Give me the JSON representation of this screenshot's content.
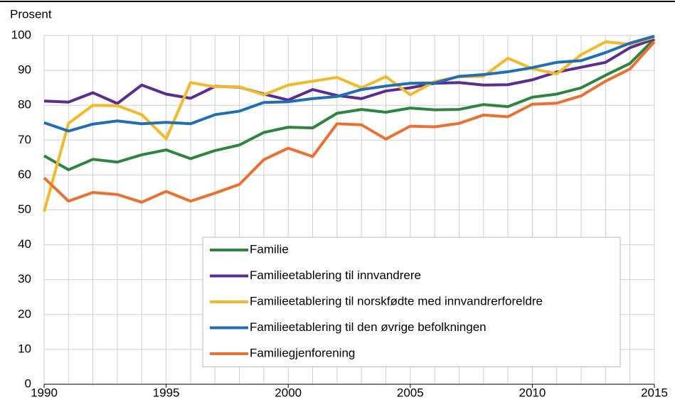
{
  "chart_data": {
    "type": "line",
    "y_axis_label": "Prosent",
    "x": [
      1990,
      1991,
      1992,
      1993,
      1994,
      1995,
      1996,
      1997,
      1998,
      1999,
      2000,
      2001,
      2002,
      2003,
      2004,
      2005,
      2006,
      2007,
      2008,
      2009,
      2010,
      2011,
      2012,
      2013,
      2014,
      2015
    ],
    "xlim": [
      1990,
      2015
    ],
    "xticks": [
      1990,
      1995,
      2000,
      2005,
      2010,
      2015
    ],
    "ylim": [
      0,
      100
    ],
    "yticks": [
      0,
      10,
      20,
      30,
      40,
      50,
      60,
      70,
      80,
      90,
      100
    ],
    "grid": true,
    "legend": "lower right",
    "series": [
      {
        "name": "Familie",
        "color": "#2e8540",
        "values": [
          65.5,
          61.5,
          64.5,
          63.7,
          65.8,
          67.2,
          64.7,
          67,
          68.6,
          72.2,
          73.7,
          73.5,
          77.7,
          78.8,
          78,
          79.2,
          78.7,
          78.8,
          80.2,
          79.6,
          82.3,
          83.2,
          85,
          88.6,
          92,
          99
        ]
      },
      {
        "name": "Familieetablering til innvandrere",
        "color": "#5c2d91",
        "values": [
          81.2,
          80.9,
          83.6,
          80.5,
          85.8,
          83.2,
          82,
          85.4,
          85.2,
          83.2,
          81.5,
          84.5,
          82.8,
          81.9,
          84.1,
          85,
          86.3,
          86.5,
          85.8,
          85.9,
          87.3,
          89.5,
          90.9,
          92.3,
          96.5,
          99
        ]
      },
      {
        "name": "Familieetablering til norskfødte med innvandrerforeldre",
        "color": "#f2b92a",
        "values": [
          49.5,
          74.8,
          80,
          79.9,
          77.3,
          70.4,
          86.5,
          85.3,
          85.3,
          83,
          85.8,
          86.9,
          88,
          85,
          88.2,
          83,
          86.8,
          88.2,
          88.3,
          93.5,
          90.5,
          89,
          94.5,
          98.2,
          97.5,
          99.5
        ]
      },
      {
        "name": "Familieetablering til den øvrige befolkningen",
        "color": "#1f6fb5",
        "values": [
          75,
          72.6,
          74.6,
          75.5,
          74.7,
          75.1,
          74.7,
          77.3,
          78.3,
          80.8,
          81,
          81.9,
          82.5,
          84.5,
          85.5,
          86.3,
          86.4,
          88.3,
          88.8,
          89.6,
          90.8,
          92.3,
          92.8,
          95.1,
          97.8,
          99.8
        ]
      },
      {
        "name": "Familiegjenforening",
        "color": "#ed7030",
        "values": [
          59.2,
          52.5,
          55,
          54.4,
          52.2,
          55.3,
          52.5,
          54.8,
          57.3,
          64.4,
          67.7,
          65.3,
          74.7,
          74.4,
          70.3,
          74,
          73.8,
          74.8,
          77.2,
          76.7,
          80.3,
          80.6,
          82.7,
          86.9,
          90.4,
          98.2
        ]
      }
    ]
  }
}
